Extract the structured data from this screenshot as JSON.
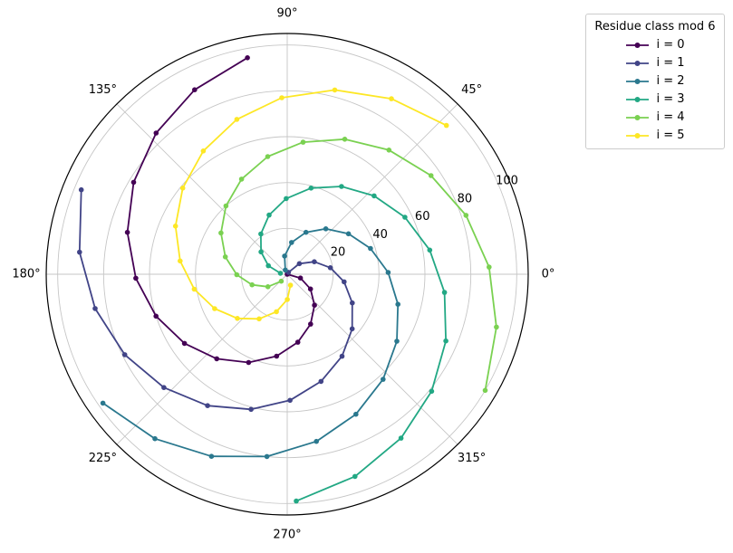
{
  "figure": {
    "background": "#ffffff",
    "text_color": "#000000"
  },
  "chart_data": {
    "type": "line",
    "projection": "polar",
    "point_rule": "each point: theta = n radians, r = n; series = residue class n mod 6",
    "n_range": [
      0,
      100
    ],
    "rmax": 105,
    "radial_ticks": [
      20,
      40,
      60,
      80,
      100
    ],
    "radial_tick_labels": [
      "20",
      "40",
      "60",
      "80",
      "100"
    ],
    "rlabel_angle_deg": 23,
    "angular_ticks_deg": [
      0,
      45,
      90,
      135,
      180,
      225,
      270,
      315
    ],
    "angular_tick_labels": [
      "0°",
      "45°",
      "90°",
      "135°",
      "180°",
      "225°",
      "270°",
      "315°"
    ],
    "grid": true,
    "grid_color": "#c6c6c6",
    "spine_color": "#000000",
    "legend": {
      "title": "Residue class mod 6",
      "position": "upper right, outside axes"
    },
    "series": [
      {
        "name": "i = 0",
        "color": "#440154",
        "n": [
          0,
          6,
          12,
          18,
          24,
          30,
          36,
          42,
          48,
          54,
          60,
          66,
          72,
          78,
          84,
          90,
          96
        ]
      },
      {
        "name": "i = 1",
        "color": "#414487",
        "n": [
          1,
          7,
          13,
          19,
          25,
          31,
          37,
          43,
          49,
          55,
          61,
          67,
          73,
          79,
          85,
          91,
          97
        ]
      },
      {
        "name": "i = 2",
        "color": "#2a788e",
        "n": [
          2,
          8,
          14,
          20,
          26,
          32,
          38,
          44,
          50,
          56,
          62,
          68,
          74,
          80,
          86,
          92,
          98
        ]
      },
      {
        "name": "i = 3",
        "color": "#22a884",
        "n": [
          3,
          9,
          15,
          21,
          27,
          33,
          39,
          45,
          51,
          57,
          63,
          69,
          75,
          81,
          87,
          93,
          99
        ]
      },
      {
        "name": "i = 4",
        "color": "#7ad151",
        "n": [
          4,
          10,
          16,
          22,
          28,
          34,
          40,
          46,
          52,
          58,
          64,
          70,
          76,
          82,
          88,
          94,
          100
        ]
      },
      {
        "name": "i = 5",
        "color": "#fde725",
        "n": [
          5,
          11,
          17,
          23,
          29,
          35,
          41,
          47,
          53,
          59,
          65,
          71,
          77,
          83,
          89,
          95
        ]
      }
    ]
  }
}
